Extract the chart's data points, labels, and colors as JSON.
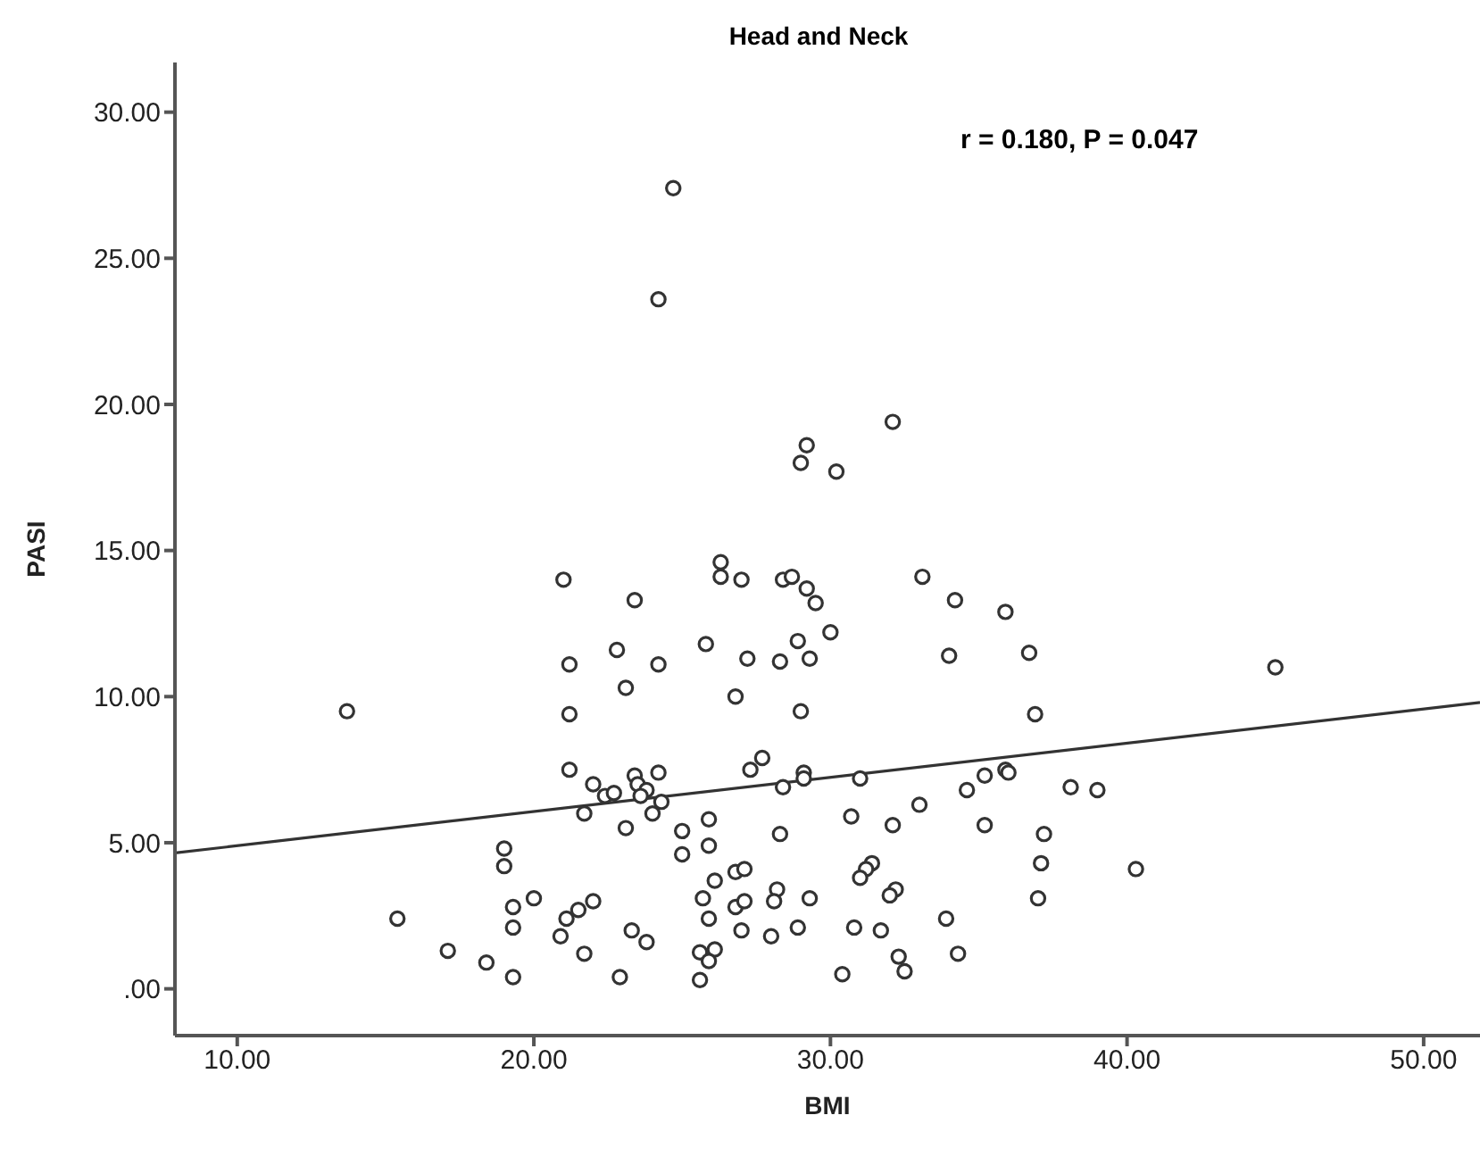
{
  "chart_data": {
    "type": "scatter",
    "title": "Head and Neck",
    "xlabel": "BMI",
    "ylabel": "PASI",
    "annotations": [
      "r = 0.180, P = 0.047"
    ],
    "xlim": [
      7.9,
      51.9
    ],
    "ylim": [
      -1.6,
      31.7
    ],
    "xticks": [
      {
        "value": 10,
        "label": "10.00"
      },
      {
        "value": 20,
        "label": "20.00"
      },
      {
        "value": 30,
        "label": "30.00"
      },
      {
        "value": 40,
        "label": "40.00"
      },
      {
        "value": 50,
        "label": "50.00"
      }
    ],
    "yticks": [
      {
        "value": 0,
        "label": ".00"
      },
      {
        "value": 5,
        "label": "5.00"
      },
      {
        "value": 10,
        "label": "10.00"
      },
      {
        "value": 15,
        "label": "15.00"
      },
      {
        "value": 20,
        "label": "20.00"
      },
      {
        "value": 25,
        "label": "25.00"
      },
      {
        "value": 30,
        "label": "30.00"
      }
    ],
    "marker": "circle",
    "series": [
      {
        "color": "#333333",
        "x": [
          24.7,
          24.2,
          29.2,
          29.0,
          30.2,
          32.1,
          21.0,
          23.4,
          26.3,
          26.3,
          27.0,
          28.4,
          28.7,
          29.2,
          29.5,
          33.1,
          34.2,
          35.9,
          30.0,
          25.8,
          27.2,
          28.3,
          28.9,
          29.3,
          34.0,
          36.7,
          26.8,
          29.0,
          36.9,
          22.8,
          21.2,
          24.2,
          23.1,
          21.2,
          13.7,
          21.2,
          22.0,
          22.4,
          22.7,
          23.4,
          24.2,
          23.5,
          23.8,
          23.6,
          24.3,
          21.7,
          24.0,
          23.1,
          25.0,
          25.0,
          19.0,
          19.0,
          15.4,
          19.3,
          20.0,
          19.3,
          17.1,
          18.4,
          19.3,
          21.1,
          21.5,
          22.0,
          20.9,
          21.7,
          23.3,
          23.8,
          22.9,
          25.9,
          25.9,
          27.3,
          27.7,
          28.4,
          29.1,
          29.1,
          31.0,
          28.3,
          30.7,
          32.1,
          33.0,
          34.6,
          35.2,
          35.9,
          36.0,
          35.2,
          37.2,
          37.1,
          37.0,
          38.1,
          39.0,
          40.3,
          45.0,
          26.1,
          26.8,
          27.1,
          25.7,
          25.9,
          26.8,
          27.1,
          28.2,
          28.1,
          29.3,
          27.0,
          28.0,
          28.9,
          25.6,
          26.1,
          25.9,
          25.6,
          31.4,
          31.2,
          31.0,
          32.2,
          32.0,
          30.8,
          31.7,
          33.9,
          34.3,
          32.3,
          32.5,
          30.4
        ],
        "values": [
          27.4,
          23.6,
          18.6,
          18.0,
          17.7,
          19.4,
          14.0,
          13.3,
          14.6,
          14.1,
          14.0,
          14.0,
          14.1,
          13.7,
          13.2,
          14.1,
          13.3,
          12.9,
          12.2,
          11.8,
          11.3,
          11.2,
          11.9,
          11.3,
          11.4,
          11.5,
          10.0,
          9.5,
          9.4,
          11.6,
          11.1,
          11.1,
          10.3,
          9.4,
          9.5,
          7.5,
          7.0,
          6.6,
          6.7,
          7.3,
          7.4,
          7.0,
          6.8,
          6.6,
          6.4,
          6.0,
          6.0,
          5.5,
          5.4,
          4.6,
          4.8,
          4.2,
          2.4,
          2.8,
          3.1,
          2.1,
          1.3,
          0.9,
          0.4,
          2.4,
          2.7,
          3.0,
          1.8,
          1.2,
          2.0,
          1.6,
          0.4,
          5.8,
          4.9,
          7.5,
          7.9,
          6.9,
          7.4,
          7.2,
          7.2,
          5.3,
          5.9,
          5.6,
          6.3,
          6.8,
          7.3,
          7.5,
          7.4,
          5.6,
          5.3,
          4.3,
          3.1,
          6.9,
          6.8,
          4.1,
          11.0,
          3.7,
          4.0,
          4.1,
          3.1,
          2.4,
          2.8,
          3.0,
          3.4,
          3.0,
          3.1,
          2.0,
          1.8,
          2.1,
          1.25,
          1.35,
          0.95,
          0.3,
          4.3,
          4.1,
          3.8,
          3.4,
          3.2,
          2.1,
          2.0,
          2.4,
          1.2,
          1.1,
          0.6,
          0.5
        ]
      },
      {
        "type": "line",
        "color": "#333333",
        "x": [
          7.9,
          51.9
        ],
        "values": [
          4.65,
          9.8
        ],
        "marker": "none"
      }
    ]
  }
}
